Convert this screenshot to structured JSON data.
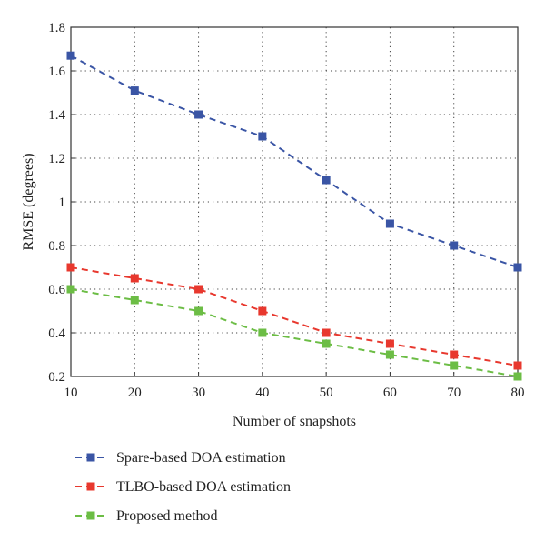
{
  "chart_data": {
    "type": "line",
    "title": "",
    "xlabel": "Number of snapshots",
    "ylabel": "RMSE (degrees)",
    "xlim": [
      10,
      80
    ],
    "ylim": [
      0.2,
      1.8
    ],
    "xticks": [
      10,
      20,
      30,
      40,
      50,
      60,
      70,
      80
    ],
    "yticks": [
      0.2,
      0.4,
      0.6,
      0.8,
      1,
      1.2,
      1.4,
      1.6,
      1.8
    ],
    "ytick_labels": [
      "0.2",
      "0.4",
      "0.6",
      "0.8",
      "1",
      "1.2",
      "1.4",
      "1.6",
      "1.8"
    ],
    "grid": true,
    "legend_position": "below",
    "x": [
      10,
      20,
      30,
      40,
      50,
      60,
      70,
      80
    ],
    "series": [
      {
        "name": "Spare-based DOA estimation",
        "color": "#3a55a5",
        "values": [
          1.67,
          1.51,
          1.4,
          1.3,
          1.1,
          0.9,
          0.8,
          0.7
        ]
      },
      {
        "name": "TLBO-based DOA estimation",
        "color": "#e8382e",
        "values": [
          0.7,
          0.65,
          0.6,
          0.5,
          0.4,
          0.35,
          0.3,
          0.25
        ]
      },
      {
        "name": "Proposed method",
        "color": "#6cbd45",
        "values": [
          0.6,
          0.55,
          0.5,
          0.4,
          0.35,
          0.3,
          0.25,
          0.2
        ]
      }
    ]
  }
}
